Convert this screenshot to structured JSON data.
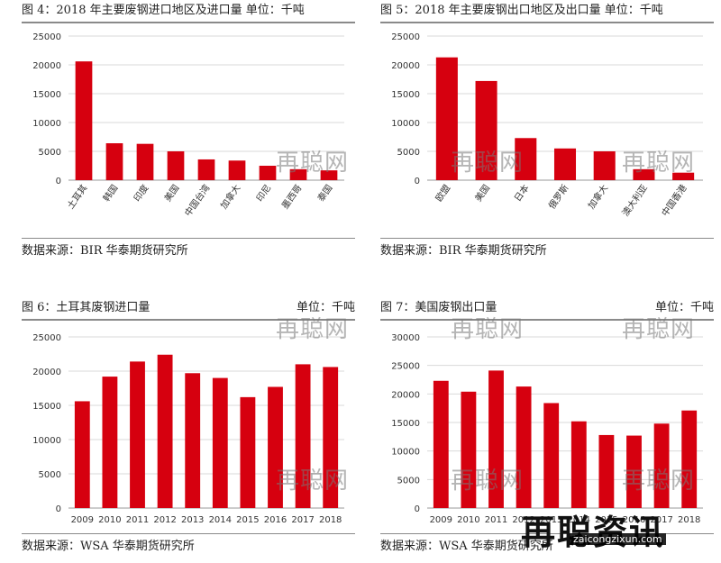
{
  "colors": {
    "bar": "#d6000f",
    "grid": "#d9d9d9",
    "axis": "#999999"
  },
  "watermark": "再聪网",
  "brand": {
    "name": "再聪资讯",
    "site": "zaicongzixun.com"
  },
  "panels": [
    {
      "title": "图 4：2018 年主要废钢进口地区及进口量  单位：千吨",
      "unit": "",
      "source": "数据来源：BIR  华泰期货研究所"
    },
    {
      "title": "图 5：2018 年主要废钢出口地区及出口量  单位：千吨",
      "unit": "",
      "source": "数据来源：BIR  华泰期货研究所"
    },
    {
      "title": "图 6：土耳其废钢进口量",
      "unit": "单位：千吨",
      "source": "数据来源：WSA 华泰期货研究所"
    },
    {
      "title": "图 7：美国废钢出口量",
      "unit": "单位：千吨",
      "source": "数据来源：WSA  华泰期货研究所"
    }
  ],
  "chart_data": [
    {
      "type": "bar",
      "categories": [
        "土耳其",
        "韩国",
        "印度",
        "美国",
        "中国台湾",
        "加拿大",
        "印尼",
        "墨西哥",
        "泰国"
      ],
      "values": [
        20600,
        6400,
        6300,
        5000,
        3600,
        3400,
        2500,
        1900,
        1700
      ],
      "ylim": [
        0,
        25000
      ],
      "yticks": [
        0,
        5000,
        10000,
        15000,
        20000,
        25000
      ],
      "rotated_labels": true,
      "grid": true
    },
    {
      "type": "bar",
      "categories": [
        "欧盟",
        "美国",
        "日本",
        "俄罗斯",
        "加拿大",
        "澳大利亚",
        "中国香港"
      ],
      "values": [
        21300,
        17200,
        7300,
        5500,
        5000,
        1900,
        1300
      ],
      "ylim": [
        0,
        25000
      ],
      "yticks": [
        0,
        5000,
        10000,
        15000,
        20000,
        25000
      ],
      "rotated_labels": true,
      "grid": true
    },
    {
      "type": "bar",
      "categories": [
        "2009",
        "2010",
        "2011",
        "2012",
        "2013",
        "2014",
        "2015",
        "2016",
        "2017",
        "2018"
      ],
      "values": [
        15600,
        19200,
        21400,
        22400,
        19700,
        19000,
        16200,
        17700,
        21000,
        20600
      ],
      "ylim": [
        0,
        25000
      ],
      "yticks": [
        0,
        5000,
        10000,
        15000,
        20000,
        25000
      ],
      "rotated_labels": false,
      "grid": true
    },
    {
      "type": "bar",
      "categories": [
        "2009",
        "2010",
        "2011",
        "2012",
        "2013",
        "2014",
        "2015",
        "2016",
        "2017",
        "2018"
      ],
      "values": [
        22300,
        20400,
        24100,
        21300,
        18400,
        15200,
        12800,
        12700,
        14800,
        17100
      ],
      "ylim": [
        0,
        30000
      ],
      "yticks": [
        0,
        5000,
        10000,
        15000,
        20000,
        25000,
        30000
      ],
      "rotated_labels": false,
      "grid": true
    }
  ]
}
